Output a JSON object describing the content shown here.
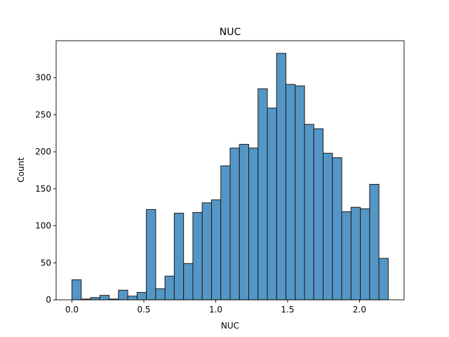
{
  "chart_data": {
    "type": "bar",
    "title": "NUC",
    "xlabel": "NUC",
    "ylabel": "Count",
    "xlim": [
      -0.11,
      2.31
    ],
    "ylim": [
      0,
      350
    ],
    "xticks": [
      0.0,
      0.5,
      1.0,
      1.5,
      2.0
    ],
    "xtick_labels": [
      "0.0",
      "0.5",
      "1.0",
      "1.5",
      "2.0"
    ],
    "yticks": [
      0,
      50,
      100,
      150,
      200,
      250,
      300
    ],
    "ytick_labels": [
      "0",
      "50",
      "100",
      "150",
      "200",
      "250",
      "300"
    ],
    "bin_start": 0.0,
    "bin_width": 0.0647,
    "values": [
      27,
      1,
      3,
      6,
      1,
      13,
      5,
      10,
      122,
      15,
      32,
      117,
      49,
      118,
      131,
      135,
      181,
      205,
      210,
      205,
      285,
      259,
      333,
      291,
      289,
      237,
      231,
      198,
      192,
      119,
      125,
      123,
      156,
      56
    ],
    "bar_color": "#5497c6",
    "edge_color": "#1a1a1a",
    "grid": false,
    "legend": false
  }
}
